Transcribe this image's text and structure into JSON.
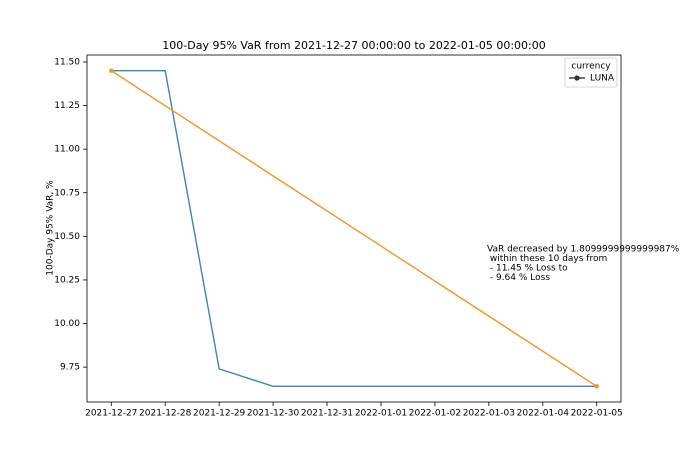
{
  "chart_data": {
    "type": "line",
    "title": "100-Day 95% VaR from 2021-12-27 00:00:00 to 2022-01-05 00:00:00",
    "y_label": "100-Day 95% VaR, %",
    "categories": [
      "2021-12-27",
      "2021-12-28",
      "2021-12-29",
      "2021-12-30",
      "2021-12-31",
      "2022-01-01",
      "2022-01-02",
      "2022-01-03",
      "2022-01-04",
      "2022-01-05"
    ],
    "series": [
      {
        "name": "LUNA",
        "color": "#3c88b0",
        "markers": false,
        "values": [
          11.45,
          11.45,
          9.74,
          9.64,
          9.64,
          9.64,
          9.64,
          9.64,
          9.64,
          9.64
        ]
      },
      {
        "color": "#f0952c",
        "markers": true,
        "x": [
          "2021-12-27",
          "2022-01-05"
        ],
        "values": [
          11.45,
          9.64
        ]
      }
    ],
    "ylim": [
      9.55,
      11.54
    ],
    "yticks": [
      {
        "value": 9.75,
        "label": "9.75"
      },
      {
        "value": 10.0,
        "label": "10.00"
      },
      {
        "value": 10.25,
        "label": "10.25"
      },
      {
        "value": 10.5,
        "label": "10.50"
      },
      {
        "value": 10.75,
        "label": "10.75"
      },
      {
        "value": 11.0,
        "label": "11.00"
      },
      {
        "value": 11.25,
        "label": "11.25"
      },
      {
        "value": 11.5,
        "label": "11.50"
      }
    ],
    "grid": false,
    "legend": {
      "title": "currency",
      "position": "upper right",
      "marker_color": "#333333"
    },
    "annotation": [
      "VaR decreased by 1.8099999999999987%",
      " within these 10 days from",
      " - 11.45 % Loss to",
      " - 9.64 % Loss"
    ]
  }
}
